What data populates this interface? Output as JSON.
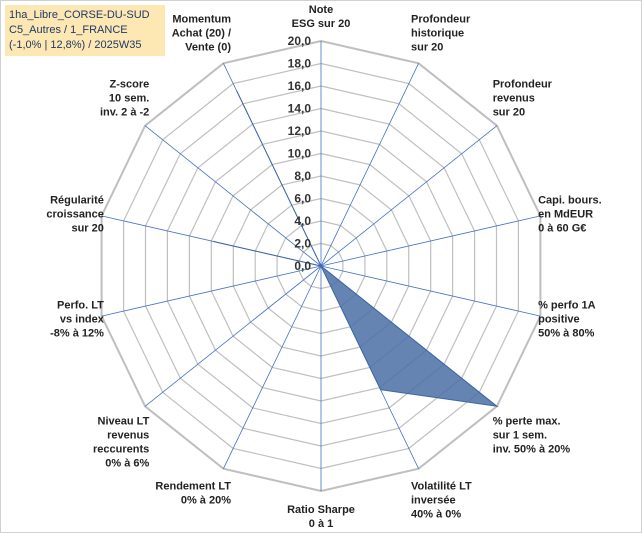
{
  "title_lines": [
    "1ha_Libre_CORSE-DU-SUD",
    "C5_Autres / 1_FRANCE",
    "(-1,0% | 12,8%) / 2025W35"
  ],
  "colors": {
    "grid": "#bfbfbf",
    "spoke": "#4472c4",
    "fill": "#4a6fa5",
    "fill_stroke": "#3e66a6",
    "title_bg": "#fde8b4"
  },
  "chart_data": {
    "type": "radar",
    "rmin": 0,
    "rmax": 20,
    "tick_step": 2,
    "grid": true,
    "tick_labels": [
      "0,0",
      "2,0",
      "4,0",
      "6,0",
      "8,0",
      "10,0",
      "12,0",
      "14,0",
      "16,0",
      "18,0",
      "20,0"
    ],
    "axes": [
      {
        "lines": [
          "Note",
          "ESG sur 20"
        ],
        "value": 0
      },
      {
        "lines": [
          "Profondeur",
          "historique",
          "sur 20"
        ],
        "value": 0
      },
      {
        "lines": [
          "Profondeur",
          "revenus",
          "sur 20"
        ],
        "value": 0
      },
      {
        "lines": [
          "Capi. bours.",
          "en MdEUR",
          "0 à 60 G€"
        ],
        "value": 0
      },
      {
        "lines": [
          "% perfo 1A",
          "positive",
          "50% à 80%"
        ],
        "value": 0
      },
      {
        "lines": [
          "% perte max.",
          "sur 1 sem.",
          "inv. 50% à 20%"
        ],
        "value": 20
      },
      {
        "lines": [
          "Volatilité LT",
          "inversée",
          "40% à 0%"
        ],
        "value": 12.2
      },
      {
        "lines": [
          "Ratio Sharpe",
          "0 à 1"
        ],
        "value": 0
      },
      {
        "lines": [
          "Rendement LT",
          "0% à 20%"
        ],
        "value": 0
      },
      {
        "lines": [
          "Niveau LT",
          "revenus",
          "reccurents",
          "0% à 6%"
        ],
        "value": 0
      },
      {
        "lines": [
          "Perfo. LT",
          "vs index",
          "-8% à 12%"
        ],
        "value": 0
      },
      {
        "lines": [
          "Régularité",
          "croissance",
          "sur 20"
        ],
        "value": 9.8
      },
      {
        "lines": [
          "Z-score",
          "10 sem.",
          "inv. 2 à -2"
        ],
        "value": 0
      },
      {
        "lines": [
          "Momentum",
          "Achat (20) /",
          "Vente (0)"
        ],
        "value": 17.3
      }
    ]
  }
}
